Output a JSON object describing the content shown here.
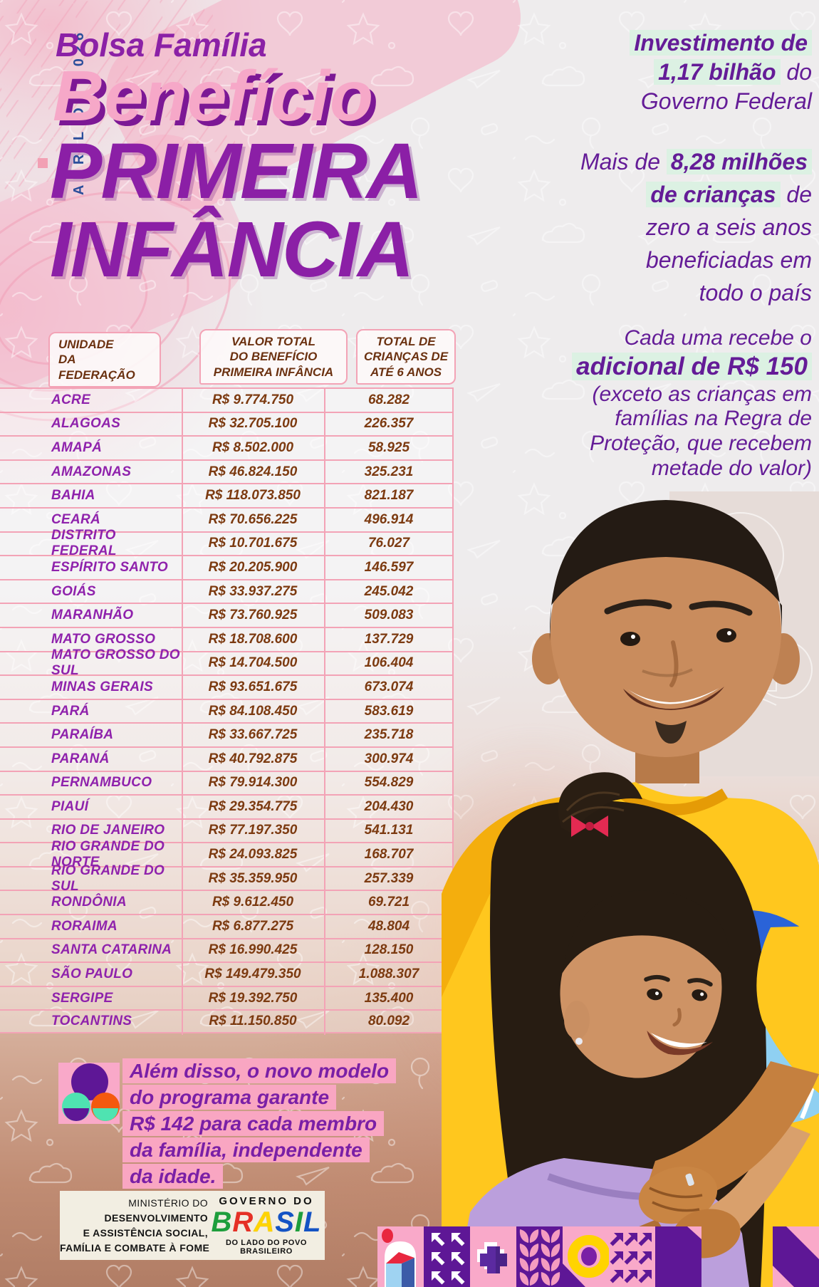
{
  "meta": {
    "date_label": "ABRIL DE 2026"
  },
  "header": {
    "program": "Bolsa Família",
    "title_benefit": "Benefício",
    "title_line2": "PRIMEIRA",
    "title_line3": "INFÂNCIA"
  },
  "investment": {
    "line1_bold": "Investimento de",
    "line2_bold": "1,17 bilhão",
    "line2_rest": " do",
    "line3": "Governo Federal"
  },
  "reach": {
    "line1_pre": "Mais de ",
    "line1_bold": "8,28 milhões",
    "line2_bold": "de crianças",
    "line2_rest": " de",
    "line3": "zero a seis anos",
    "line4": "beneficiadas em",
    "line5": "todo o país"
  },
  "per_child": {
    "line1": "Cada uma recebe o",
    "line2_bold": "adicional de R$ 150",
    "line3": "(exceto as crianças em",
    "line4": "famílias na Regra de",
    "line5": "Proteção, que recebem",
    "line6": "metade do valor)"
  },
  "table": {
    "headers": {
      "uf": "UNIDADE\nDA FEDERAÇÃO",
      "valor": "VALOR TOTAL\nDO BENEFÍCIO\nPRIMEIRA INFÂNCIA",
      "criancas": "TOTAL DE\nCRIANÇAS DE\nATÉ 6 ANOS"
    },
    "rows": [
      {
        "uf": "ACRE",
        "valor": "R$ 9.774.750",
        "criancas": "68.282"
      },
      {
        "uf": "ALAGOAS",
        "valor": "R$ 32.705.100",
        "criancas": "226.357"
      },
      {
        "uf": "AMAPÁ",
        "valor": "R$ 8.502.000",
        "criancas": "58.925"
      },
      {
        "uf": "AMAZONAS",
        "valor": "R$ 46.824.150",
        "criancas": "325.231"
      },
      {
        "uf": "BAHIA",
        "valor": "R$ 118.073.850",
        "criancas": "821.187"
      },
      {
        "uf": "CEARÁ",
        "valor": "R$ 70.656.225",
        "criancas": "496.914"
      },
      {
        "uf": "DISTRITO FEDERAL",
        "valor": "R$ 10.701.675",
        "criancas": "76.027"
      },
      {
        "uf": "ESPÍRITO SANTO",
        "valor": "R$ 20.205.900",
        "criancas": "146.597"
      },
      {
        "uf": "GOIÁS",
        "valor": "R$ 33.937.275",
        "criancas": "245.042"
      },
      {
        "uf": "MARANHÃO",
        "valor": "R$ 73.760.925",
        "criancas": "509.083"
      },
      {
        "uf": "MATO GROSSO",
        "valor": "R$ 18.708.600",
        "criancas": "137.729"
      },
      {
        "uf": "MATO GROSSO DO SUL",
        "valor": "R$ 14.704.500",
        "criancas": "106.404"
      },
      {
        "uf": "MINAS GERAIS",
        "valor": "R$ 93.651.675",
        "criancas": "673.074"
      },
      {
        "uf": "PARÁ",
        "valor": "R$ 84.108.450",
        "criancas": "583.619"
      },
      {
        "uf": "PARAÍBA",
        "valor": "R$ 33.667.725",
        "criancas": "235.718"
      },
      {
        "uf": "PARANÁ",
        "valor": "R$ 40.792.875",
        "criancas": "300.974"
      },
      {
        "uf": "PERNAMBUCO",
        "valor": "R$ 79.914.300",
        "criancas": "554.829"
      },
      {
        "uf": "PIAUÍ",
        "valor": "R$ 29.354.775",
        "criancas": "204.430"
      },
      {
        "uf": "RIO DE JANEIRO",
        "valor": "R$ 77.197.350",
        "criancas": "541.131"
      },
      {
        "uf": "RIO GRANDE DO NORTE",
        "valor": "R$ 24.093.825",
        "criancas": "168.707"
      },
      {
        "uf": "RIO GRANDE DO SUL",
        "valor": "R$ 35.359.950",
        "criancas": "257.339"
      },
      {
        "uf": "RONDÔNIA",
        "valor": "R$ 9.612.450",
        "criancas": "69.721"
      },
      {
        "uf": "RORAIMA",
        "valor": "R$ 6.877.275",
        "criancas": "48.804"
      },
      {
        "uf": "SANTA CATARINA",
        "valor": "R$ 16.990.425",
        "criancas": "128.150"
      },
      {
        "uf": "SÃO PAULO",
        "valor": "R$ 149.479.350",
        "criancas": "1.088.307"
      },
      {
        "uf": "SERGIPE",
        "valor": "R$ 19.392.750",
        "criancas": "135.400"
      },
      {
        "uf": "TOCANTINS",
        "valor": "R$ 11.150.850",
        "criancas": "80.092"
      }
    ]
  },
  "extra_note": {
    "line1": "Além disso, o novo modelo",
    "line2": "do programa garante",
    "line3": "R$ 142 para cada membro",
    "line4": "da família, independente",
    "line5": "da idade."
  },
  "footer": {
    "ministry_line1": "MINISTÉRIO DO",
    "ministry_line2": "DESENVOLVIMENTO",
    "ministry_line3": "E ASSISTÊNCIA SOCIAL,",
    "ministry_line4": "FAMÍLIA E COMBATE À FOME",
    "gov_top": "GOVERNO DO",
    "gov_logo": "BRASIL",
    "gov_bottom": "DO LADO DO POVO BRASILEIRO"
  },
  "colors": {
    "title_purple": "#8B1FA6",
    "title_pink": "#F6A8C8",
    "date_blue": "#2B4E9B",
    "text_purple": "#641C97",
    "mint_highlight": "#DCF1E3",
    "pink_highlight": "#F9A6C2",
    "table_border_pink": "#F3A3B6",
    "table_value_brown": "#7C3A10",
    "state_purple": "#8F22AC",
    "tile_purple": "#5E1796",
    "tile_pink": "#F9A9C9"
  }
}
